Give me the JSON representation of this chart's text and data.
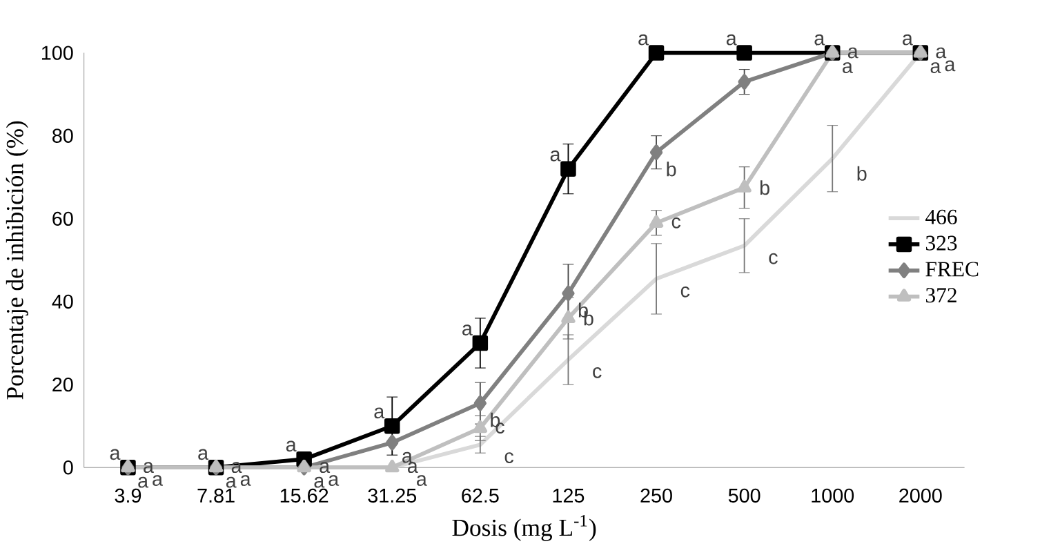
{
  "chart_data": {
    "type": "line",
    "xlabel": "Dosis (mg L$^{-1}$)",
    "ylabel": "Porcentaje de inhibición (%)",
    "categories": [
      "3.9",
      "7.81",
      "15.62",
      "31.25",
      "62.5",
      "125",
      "250",
      "500",
      "1000",
      "2000"
    ],
    "ylim": [
      0,
      100
    ],
    "yticks": [
      0,
      20,
      40,
      60,
      80,
      100
    ],
    "grid": false,
    "legend": "right",
    "series": [
      {
        "name": "466",
        "color": "#d9d9d9",
        "marker": "none",
        "values": [
          0,
          0,
          0,
          0,
          5.5,
          26,
          45.5,
          53.5,
          74.5,
          100
        ],
        "errors": [
          null,
          null,
          null,
          null,
          2,
          6,
          8.5,
          6.5,
          8,
          null
        ],
        "value_labels": [
          "a",
          "a",
          "a",
          "a",
          "c",
          "c",
          "c",
          "c",
          "b",
          "a"
        ]
      },
      {
        "name": "323",
        "color": "#000000",
        "marker": "square",
        "values": [
          0,
          0,
          2,
          10,
          30,
          72,
          100,
          100,
          100,
          100
        ],
        "errors": [
          null,
          null,
          1,
          7,
          6,
          6,
          null,
          null,
          null,
          null
        ],
        "value_labels": [
          "a",
          "a",
          "a",
          "a",
          "a",
          "a",
          "a",
          "a",
          "a",
          "a"
        ]
      },
      {
        "name": "FREC",
        "color": "#808080",
        "marker": "diamond",
        "values": [
          0,
          0,
          0,
          6,
          15.5,
          42,
          76,
          93,
          100,
          100
        ],
        "errors": [
          null,
          null,
          null,
          null,
          5,
          7,
          4,
          3,
          null,
          null
        ],
        "value_labels": [
          "a",
          "a",
          "a",
          "a",
          "b",
          "b",
          "b",
          null,
          "a",
          "a"
        ]
      },
      {
        "name": "372",
        "color": "#bfbfbf",
        "marker": "triangle",
        "values": [
          0,
          0,
          0,
          0,
          9.5,
          36,
          59,
          67.5,
          100,
          100
        ],
        "errors": [
          null,
          null,
          null,
          null,
          3,
          5,
          3,
          5,
          null,
          null
        ],
        "value_labels": [
          "a",
          "a",
          "a",
          "a",
          "c",
          "b",
          "c",
          "b",
          "a",
          "a"
        ]
      }
    ]
  }
}
